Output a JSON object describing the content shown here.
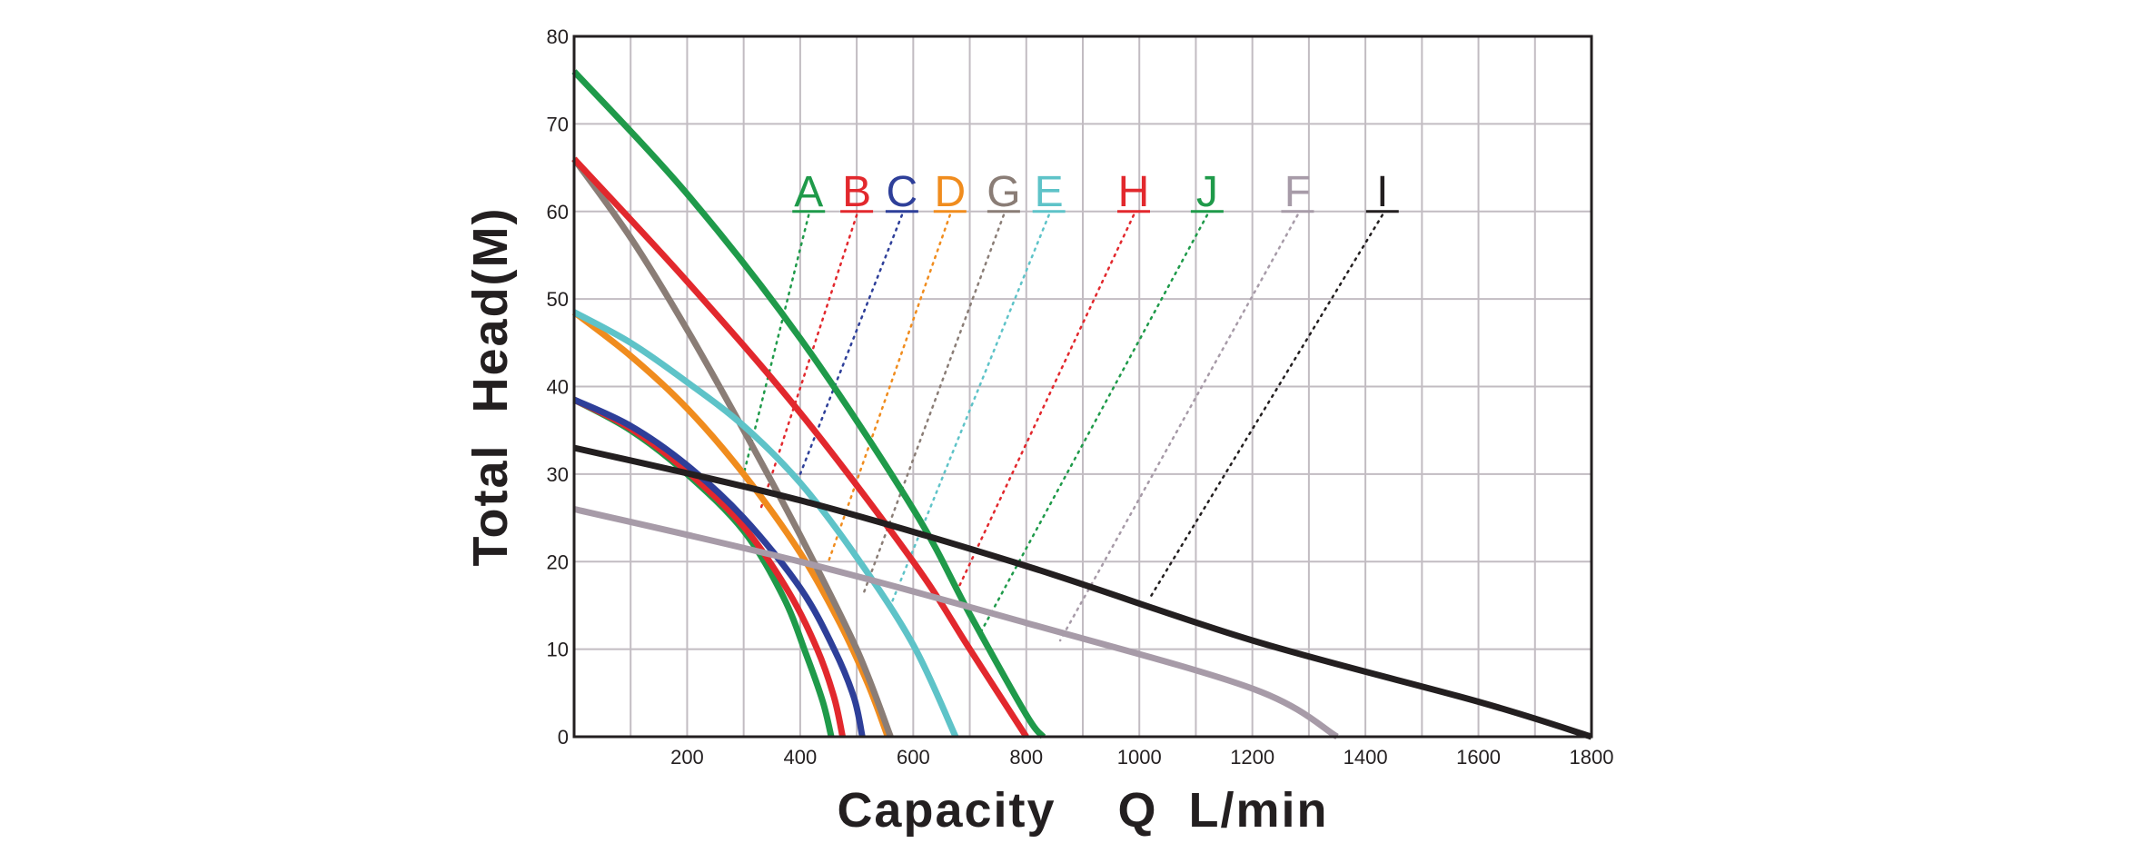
{
  "chart_data": {
    "type": "line",
    "title": "",
    "xlabel": "Capacity    Q  L/min",
    "ylabel": "Total  Head(M)",
    "xlim": [
      0,
      1800
    ],
    "ylim": [
      0,
      80
    ],
    "x_ticks": [
      200,
      400,
      600,
      800,
      1000,
      1200,
      1400,
      1600,
      1800
    ],
    "y_ticks": [
      0,
      10,
      20,
      30,
      40,
      50,
      60,
      70,
      80
    ],
    "grid": true,
    "legend": "curve labels along top of plot area, joined to curves by dotted leader lines",
    "series": [
      {
        "name": "A",
        "color": "#1f9a4a",
        "points": [
          [
            0,
            38.5
          ],
          [
            100,
            35
          ],
          [
            200,
            30
          ],
          [
            300,
            23.5
          ],
          [
            370,
            16
          ],
          [
            410,
            9.5
          ],
          [
            440,
            4
          ],
          [
            455,
            0
          ]
        ]
      },
      {
        "name": "B",
        "color": "#e2282d",
        "points": [
          [
            0,
            38.5
          ],
          [
            100,
            35.2
          ],
          [
            200,
            30.3
          ],
          [
            300,
            24
          ],
          [
            380,
            16.5
          ],
          [
            430,
            10
          ],
          [
            460,
            4.5
          ],
          [
            475,
            0
          ]
        ]
      },
      {
        "name": "C",
        "color": "#2e3f99",
        "points": [
          [
            0,
            38.5
          ],
          [
            100,
            35.5
          ],
          [
            200,
            31
          ],
          [
            300,
            25
          ],
          [
            400,
            17
          ],
          [
            460,
            10
          ],
          [
            495,
            4.5
          ],
          [
            510,
            0
          ]
        ]
      },
      {
        "name": "D",
        "color": "#f08c1e",
        "points": [
          [
            0,
            48.5
          ],
          [
            100,
            43.5
          ],
          [
            200,
            37.5
          ],
          [
            300,
            30
          ],
          [
            400,
            21
          ],
          [
            470,
            13
          ],
          [
            520,
            6
          ],
          [
            555,
            0
          ]
        ]
      },
      {
        "name": "G",
        "color": "#8a7d76",
        "points": [
          [
            0,
            66
          ],
          [
            100,
            57
          ],
          [
            200,
            46.5
          ],
          [
            300,
            35
          ],
          [
            400,
            23
          ],
          [
            500,
            10
          ],
          [
            560,
            0
          ]
        ]
      },
      {
        "name": "E",
        "color": "#5ec3c8",
        "points": [
          [
            0,
            48.5
          ],
          [
            100,
            45
          ],
          [
            200,
            40.5
          ],
          [
            300,
            35.5
          ],
          [
            400,
            29
          ],
          [
            500,
            20.5
          ],
          [
            600,
            10.5
          ],
          [
            675,
            0
          ]
        ]
      },
      {
        "name": "H",
        "color": "#e2282d",
        "points": [
          [
            0,
            66
          ],
          [
            200,
            52
          ],
          [
            400,
            37
          ],
          [
            600,
            20
          ],
          [
            700,
            10
          ],
          [
            800,
            0
          ]
        ]
      },
      {
        "name": "J",
        "color": "#1f9a4a",
        "points": [
          [
            0,
            76
          ],
          [
            200,
            62
          ],
          [
            400,
            45.5
          ],
          [
            600,
            26
          ],
          [
            700,
            14
          ],
          [
            800,
            2.5
          ],
          [
            830,
            0
          ]
        ]
      },
      {
        "name": "F",
        "color": "#a79ba8",
        "points": [
          [
            0,
            26
          ],
          [
            400,
            20
          ],
          [
            800,
            13
          ],
          [
            1200,
            5.5
          ],
          [
            1350,
            0
          ]
        ]
      },
      {
        "name": "I",
        "color": "#231f20",
        "points": [
          [
            0,
            33
          ],
          [
            400,
            27
          ],
          [
            800,
            19.5
          ],
          [
            1200,
            11
          ],
          [
            1600,
            4
          ],
          [
            1800,
            0
          ]
        ]
      }
    ],
    "labels": [
      {
        "text": "A",
        "color": "#1f9a4a",
        "x": 415,
        "y": 60,
        "leader_to": [
          300,
          30
        ]
      },
      {
        "text": "B",
        "color": "#e2282d",
        "x": 500,
        "y": 60,
        "leader_to": [
          330,
          26
        ]
      },
      {
        "text": "C",
        "color": "#2e3f99",
        "x": 580,
        "y": 60,
        "leader_to": [
          400,
          30
        ]
      },
      {
        "text": "D",
        "color": "#f08c1e",
        "x": 665,
        "y": 60,
        "leader_to": [
          450,
          20
        ]
      },
      {
        "text": "G",
        "color": "#8a7d76",
        "x": 760,
        "y": 60,
        "leader_to": [
          510,
          16
        ]
      },
      {
        "text": "E",
        "color": "#5ec3c8",
        "x": 840,
        "y": 60,
        "leader_to": [
          560,
          15
        ]
      },
      {
        "text": "H",
        "color": "#e2282d",
        "x": 990,
        "y": 60,
        "leader_to": [
          680,
          17
        ]
      },
      {
        "text": "J",
        "color": "#1f9a4a",
        "x": 1120,
        "y": 60,
        "leader_to": [
          720,
          12
        ]
      },
      {
        "text": "F",
        "color": "#a79ba8",
        "x": 1280,
        "y": 60,
        "leader_to": [
          860,
          11
        ]
      },
      {
        "text": "I",
        "color": "#231f20",
        "x": 1430,
        "y": 60,
        "leader_to": [
          1020,
          16
        ]
      }
    ]
  }
}
